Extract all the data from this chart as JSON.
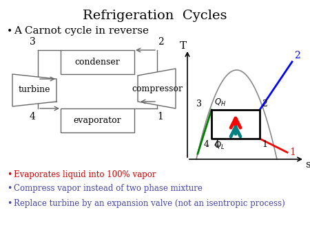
{
  "title": "Refrigeration  Cycles",
  "title_fontsize": 14,
  "background_color": "#ffffff",
  "bullet1": "A Carnot cycle in reverse",
  "bullet1_fontsize": 11,
  "diagram_labels": {
    "condenser": "condenser",
    "turbine": "turbine",
    "compressor": "compressor",
    "evaporator": "evaporator"
  },
  "ts_axis_label_T": "T",
  "ts_axis_label_s": "s",
  "bullet_texts": [
    "Evaporates liquid into 100% vapor",
    "Compress vapor instead of two phase mixture",
    "Replace turbine by an expansion valve (not an isentropic process)"
  ],
  "bullet_colors": [
    "#cc0000",
    "#4444aa",
    "#4444aa"
  ],
  "bullet_fontsize": 8.5
}
